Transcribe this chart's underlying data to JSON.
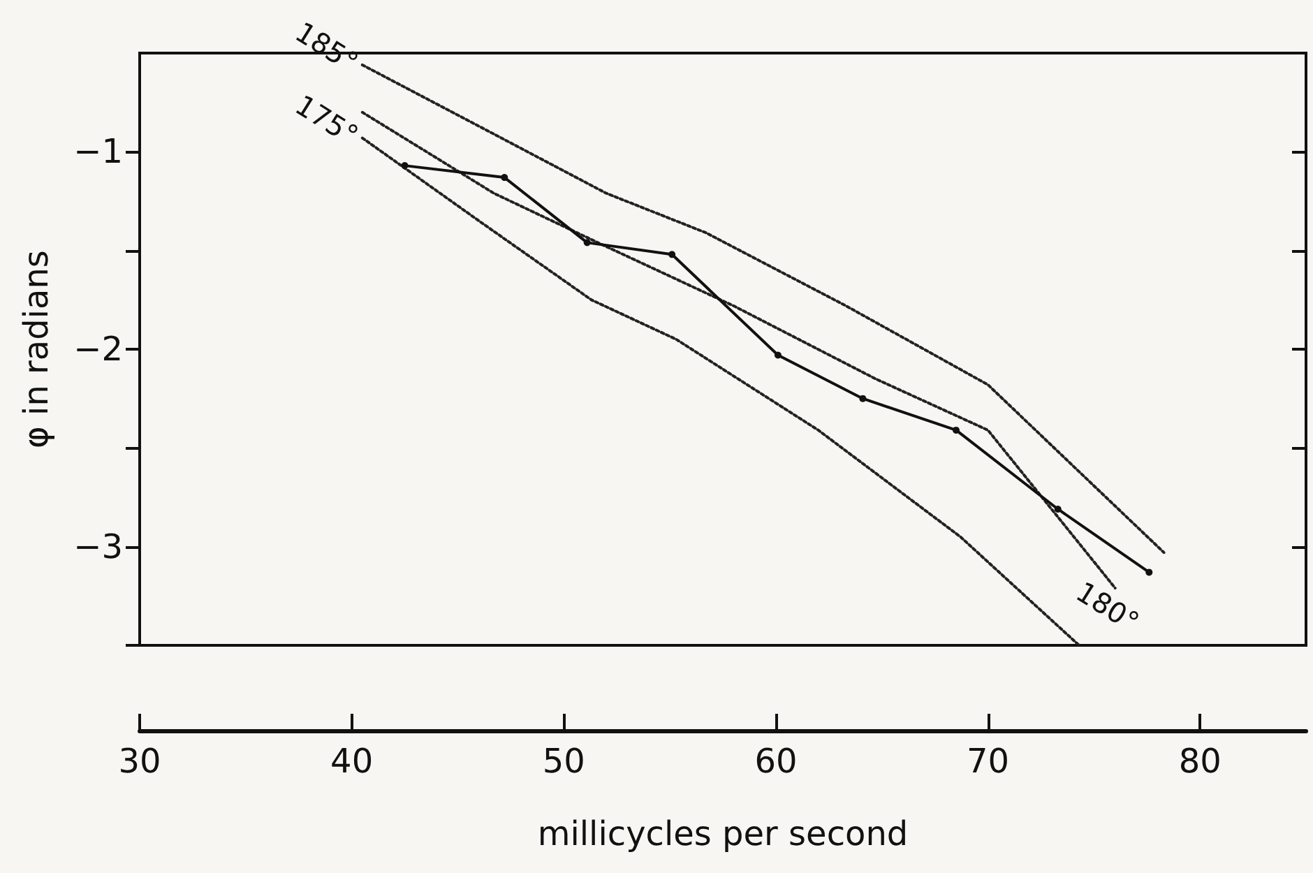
{
  "chart_data": {
    "type": "line",
    "xlabel": "millicycles per second",
    "ylabel": "φ in radians",
    "xlim": [
      30,
      85
    ],
    "ylim": [
      -3.5,
      -0.5
    ],
    "xticks": [
      30,
      40,
      50,
      60,
      70,
      80
    ],
    "yticks": [
      {
        "value": -3.5,
        "label": null
      },
      -3,
      {
        "value": -2.5,
        "label": null
      },
      -2,
      {
        "value": -1.5,
        "label": null
      },
      -1
    ],
    "grid": false,
    "legend": false,
    "series": [
      {
        "color": "#111111",
        "marker": "circle",
        "line_style": "solid",
        "x": [
          42.5,
          47.2,
          51.1,
          55.1,
          60.1,
          64.1,
          68.5,
          73.3,
          77.6
        ],
        "values": [
          -1.07,
          -1.13,
          -1.46,
          -1.52,
          -2.03,
          -2.25,
          -2.41,
          -2.81,
          -3.13
        ]
      },
      {
        "name": "185°",
        "color": "#222222",
        "marker": "none",
        "line_style": "dotted",
        "x": [
          40.5,
          46.7,
          52,
          56.7,
          63.3,
          70,
          78.3
        ],
        "values": [
          -0.56,
          -0.91,
          -1.21,
          -1.41,
          -1.78,
          -2.18,
          -3.03
        ]
      },
      {
        "name": "180°",
        "color": "#222222",
        "marker": "none",
        "line_style": "dotted",
        "x": [
          40.5,
          46.7,
          52,
          58,
          64.7,
          70,
          76
        ],
        "values": [
          -0.8,
          -1.21,
          -1.48,
          -1.78,
          -2.15,
          -2.41,
          -3.21
        ]
      },
      {
        "name": "175°",
        "color": "#222222",
        "marker": "none",
        "line_style": "dotted",
        "x": [
          40.5,
          46,
          51.3,
          55.3,
          62,
          68.7,
          74.3
        ],
        "values": [
          -0.93,
          -1.35,
          -1.75,
          -1.95,
          -2.41,
          -2.95,
          -3.5
        ]
      }
    ]
  }
}
